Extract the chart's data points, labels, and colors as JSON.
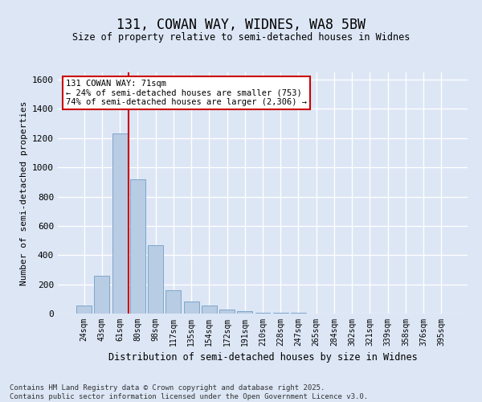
{
  "title": "131, COWAN WAY, WIDNES, WA8 5BW",
  "subtitle": "Size of property relative to semi-detached houses in Widnes",
  "xlabel": "Distribution of semi-detached houses by size in Widnes",
  "ylabel": "Number of semi-detached properties",
  "categories": [
    "24sqm",
    "43sqm",
    "61sqm",
    "80sqm",
    "98sqm",
    "117sqm",
    "135sqm",
    "154sqm",
    "172sqm",
    "191sqm",
    "210sqm",
    "228sqm",
    "247sqm",
    "265sqm",
    "284sqm",
    "302sqm",
    "321sqm",
    "339sqm",
    "358sqm",
    "376sqm",
    "395sqm"
  ],
  "values": [
    55,
    260,
    1230,
    920,
    470,
    160,
    80,
    55,
    30,
    15,
    8,
    5,
    3,
    2,
    1,
    1,
    1,
    0,
    0,
    0,
    0
  ],
  "bar_color": "#b8cce4",
  "bar_edge_color": "#7da6c8",
  "vline_color": "#cc0000",
  "vline_pos": 2.5,
  "annotation_text": "131 COWAN WAY: 71sqm\n← 24% of semi-detached houses are smaller (753)\n74% of semi-detached houses are larger (2,306) →",
  "annotation_box_color": "#cc0000",
  "ylim": [
    0,
    1650
  ],
  "yticks": [
    0,
    200,
    400,
    600,
    800,
    1000,
    1200,
    1400,
    1600
  ],
  "background_color": "#dce6f5",
  "grid_color": "#ffffff",
  "footer_line1": "Contains HM Land Registry data © Crown copyright and database right 2025.",
  "footer_line2": "Contains public sector information licensed under the Open Government Licence v3.0."
}
